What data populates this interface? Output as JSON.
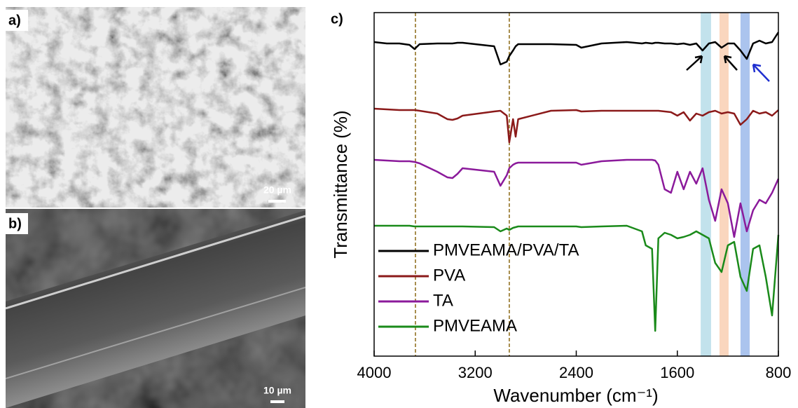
{
  "figure": {
    "panel_labels": [
      "a)",
      "b)",
      "c)"
    ],
    "scale_bars": [
      "20 µm",
      "10 µm"
    ]
  },
  "chart_data": {
    "type": "line",
    "xlabel": "Wavenumber (cm⁻¹)",
    "ylabel": "Transmittance (%)",
    "xlim": [
      4000,
      800
    ],
    "xticks": [
      4000,
      3200,
      2400,
      1600,
      800
    ],
    "ylim": [
      0,
      490
    ],
    "legend": "lower left",
    "vlines": {
      "values": [
        3673,
        2930
      ],
      "color": "#8b6914"
    },
    "bands": [
      {
        "range": [
          1415,
          1333
        ],
        "color": "#add8e6"
      },
      {
        "range": [
          1266,
          1194
        ],
        "color": "#f8c8a8"
      },
      {
        "range": [
          1100,
          1027
        ],
        "color": "#8fb0e8"
      }
    ],
    "x": [
      4000,
      3900,
      3800,
      3720,
      3680,
      3640,
      3500,
      3420,
      3380,
      3340,
      3300,
      3050,
      3000,
      2950,
      2930,
      2900,
      2880,
      2860,
      2600,
      2400,
      2360,
      2200,
      2000,
      1880,
      1850,
      1800,
      1775,
      1750,
      1700,
      1650,
      1600,
      1550,
      1500,
      1450,
      1400,
      1350,
      1300,
      1250,
      1200,
      1150,
      1100,
      1050,
      1000,
      950,
      900,
      850,
      800
    ],
    "series": [
      {
        "name": "PMVEAMA/PVA/TA",
        "color": "#000000",
        "values": [
          448,
          446,
          446,
          444,
          438,
          445,
          446,
          446,
          446,
          447,
          447,
          442,
          416,
          420,
          428,
          436,
          442,
          445,
          445,
          444,
          440,
          446,
          448,
          446,
          447,
          446,
          447,
          447,
          446,
          446,
          445,
          446,
          444,
          446,
          436,
          446,
          448,
          440,
          446,
          446,
          436,
          424,
          446,
          450,
          446,
          448,
          462
        ]
      },
      {
        "name": "PVA",
        "color": "#8b1a1a",
        "values": [
          353,
          352,
          351,
          351,
          351,
          350,
          346,
          338,
          337,
          339,
          343,
          349,
          350,
          343,
          305,
          338,
          313,
          338,
          350,
          351,
          349,
          350,
          350,
          350,
          350,
          350,
          350,
          350,
          349,
          348,
          343,
          348,
          336,
          346,
          343,
          348,
          350,
          346,
          348,
          346,
          330,
          338,
          350,
          346,
          348,
          343,
          351
        ]
      },
      {
        "name": "TA",
        "color": "#8b1a9b",
        "values": [
          280,
          279,
          278,
          278,
          277,
          275,
          263,
          255,
          254,
          260,
          268,
          263,
          243,
          258,
          268,
          273,
          275,
          276,
          276,
          276,
          273,
          278,
          280,
          280,
          280,
          280,
          279,
          273,
          238,
          233,
          263,
          238,
          263,
          246,
          268,
          223,
          193,
          238,
          218,
          170,
          218,
          178,
          208,
          223,
          218,
          233,
          253
        ]
      },
      {
        "name": "PMVEAMA",
        "color": "#1a8a1a",
        "values": [
          186,
          186,
          186,
          186,
          185,
          185,
          185,
          185,
          185,
          185,
          185,
          184,
          178,
          182,
          180,
          183,
          184,
          185,
          185,
          185,
          184,
          185,
          186,
          178,
          158,
          153,
          36,
          168,
          176,
          173,
          168,
          170,
          173,
          178,
          173,
          168,
          133,
          120,
          158,
          163,
          113,
          93,
          153,
          158,
          113,
          58,
          173
        ]
      }
    ]
  }
}
